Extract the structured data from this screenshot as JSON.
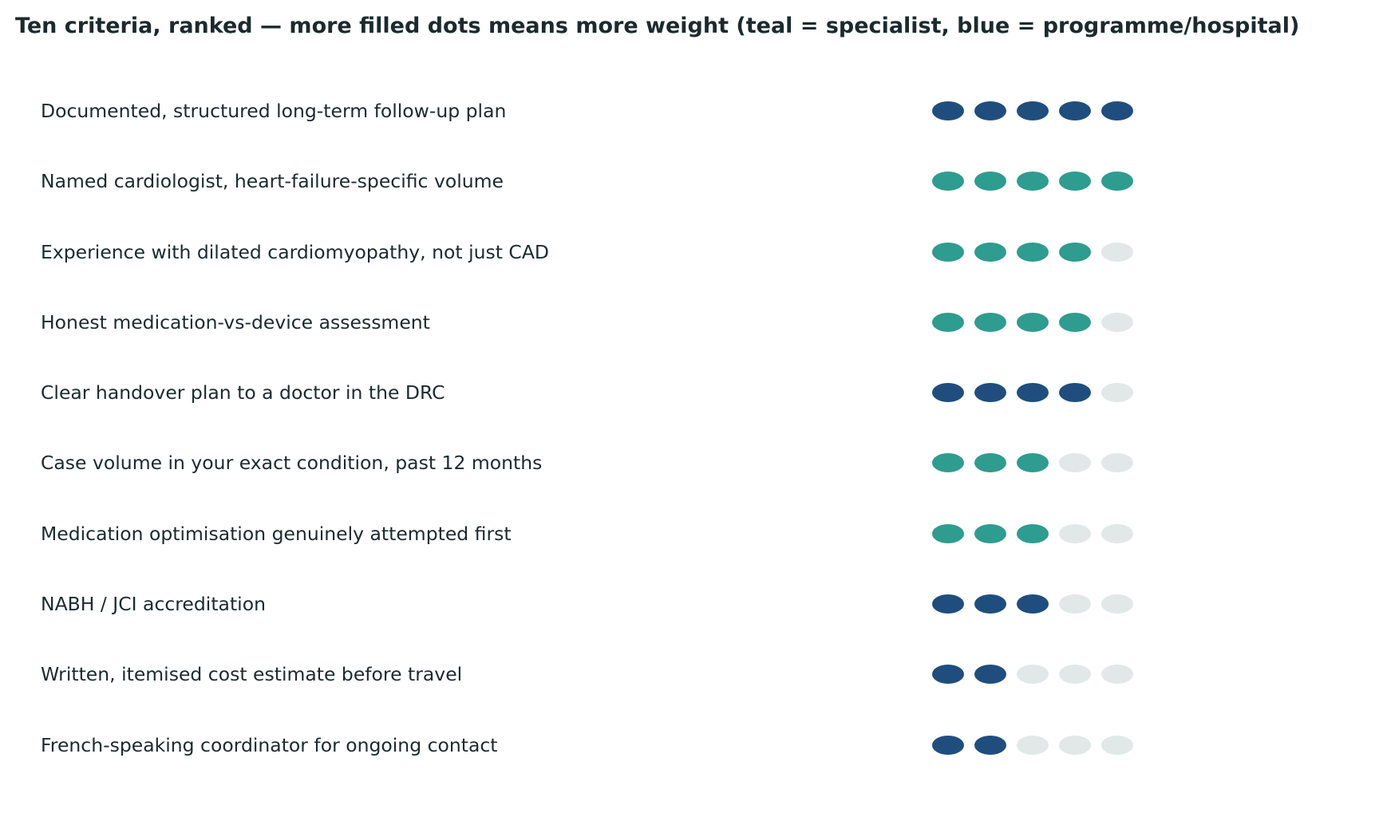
{
  "chart_data": {
    "type": "dot-rating",
    "title": "Ten criteria, ranked — more filled dots means more weight (teal = specialist, blue = programme/hospital)",
    "max_dots": 5,
    "colors": {
      "specialist": "#2e9c8f",
      "programme_hospital": "#1f4e7e",
      "empty": "#e2e8e8"
    },
    "rows": [
      {
        "label": "Documented, structured long-term follow-up plan",
        "value": 5,
        "group": "programme_hospital"
      },
      {
        "label": "Named cardiologist, heart-failure-specific volume",
        "value": 5,
        "group": "specialist"
      },
      {
        "label": "Experience with dilated cardiomyopathy, not just CAD",
        "value": 4,
        "group": "specialist"
      },
      {
        "label": "Honest medication-vs-device assessment",
        "value": 4,
        "group": "specialist"
      },
      {
        "label": "Clear handover plan to a doctor in the DRC",
        "value": 4,
        "group": "programme_hospital"
      },
      {
        "label": "Case volume in your exact condition, past 12 months",
        "value": 3,
        "group": "specialist"
      },
      {
        "label": "Medication optimisation genuinely attempted first",
        "value": 3,
        "group": "specialist"
      },
      {
        "label": "NABH / JCI accreditation",
        "value": 3,
        "group": "programme_hospital"
      },
      {
        "label": "Written, itemised cost estimate before travel",
        "value": 2,
        "group": "programme_hospital"
      },
      {
        "label": "French-speaking coordinator for ongoing contact",
        "value": 2,
        "group": "programme_hospital"
      }
    ]
  }
}
